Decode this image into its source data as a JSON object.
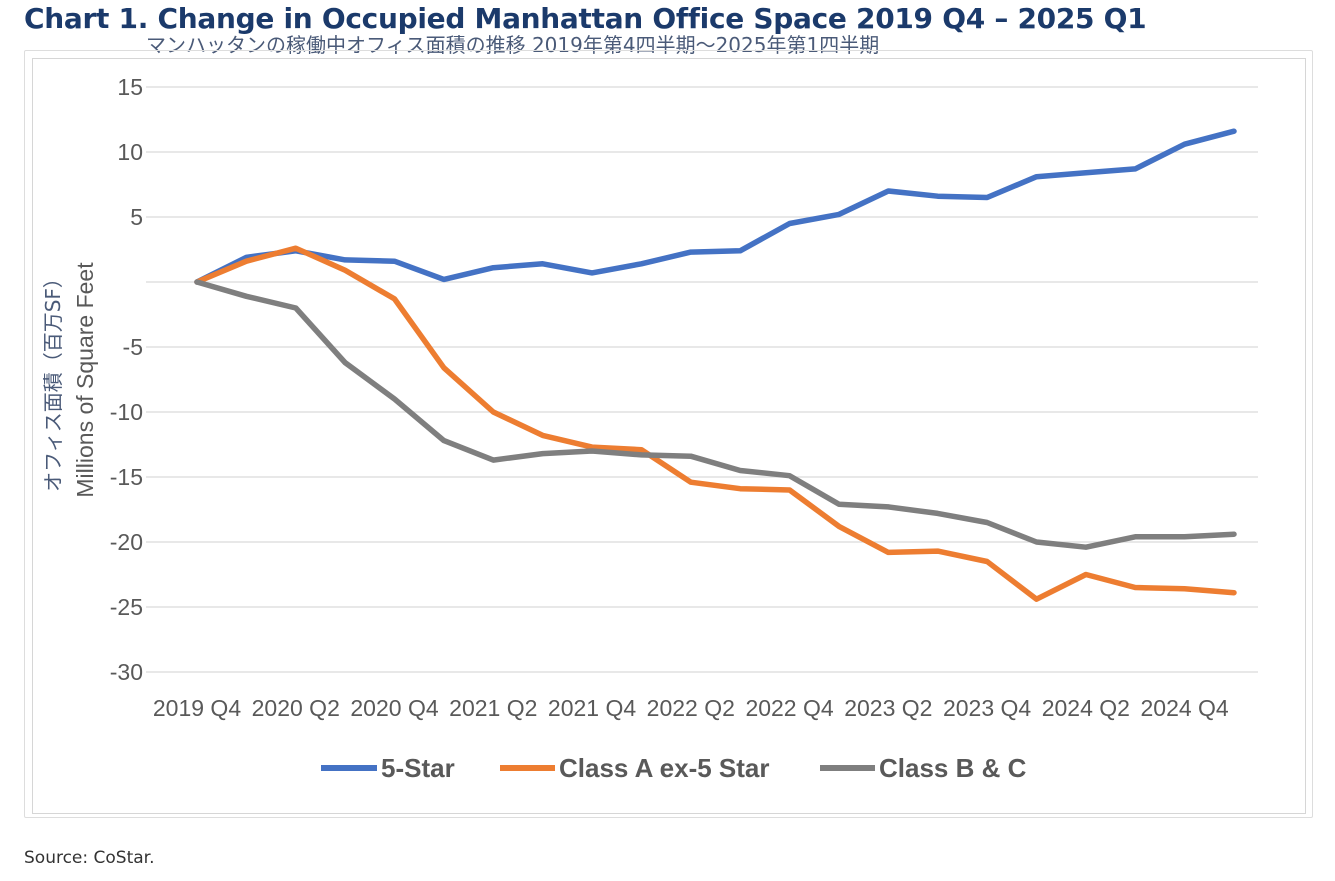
{
  "title": "Chart 1. Change in Occupied Manhattan Office Space 2019 Q4 – 2025 Q1",
  "subtitle": "マンハッタンの稼働中オフィス面積の推移 2019年第4四半期〜2025年第1四半期",
  "source": "Source: CoStar.",
  "chart_data": {
    "type": "line",
    "ylabel_ja": "オフィス面積（百万SF）",
    "ylabel": "Millions of Square Feet",
    "xlabel": "",
    "ylim": [
      -30,
      15
    ],
    "yticks": [
      15,
      10,
      5,
      -5,
      -10,
      -15,
      -20,
      -25,
      -30
    ],
    "grid": true,
    "legend_position": "bottom",
    "x": [
      "2019 Q4",
      "2020 Q1",
      "2020 Q2",
      "2020 Q3",
      "2020 Q4",
      "2021 Q1",
      "2021 Q2",
      "2021 Q3",
      "2021 Q4",
      "2022 Q1",
      "2022 Q2",
      "2022 Q3",
      "2022 Q4",
      "2023 Q1",
      "2023 Q2",
      "2023 Q3",
      "2023 Q4",
      "2024 Q1",
      "2024 Q2",
      "2024 Q3",
      "2024 Q4",
      "2025 Q1"
    ],
    "xtick_labels": [
      "2019 Q4",
      "2020 Q2",
      "2020 Q4",
      "2021 Q2",
      "2021 Q4",
      "2022 Q2",
      "2022 Q4",
      "2023 Q2",
      "2023 Q4",
      "2024 Q2",
      "2024 Q4"
    ],
    "series": [
      {
        "name": "5-Star",
        "color": "#4472c4",
        "values": [
          0,
          1.9,
          2.4,
          1.7,
          1.6,
          0.2,
          1.1,
          1.4,
          0.7,
          1.4,
          2.3,
          2.4,
          4.5,
          5.2,
          7.0,
          6.6,
          6.5,
          8.1,
          8.4,
          8.7,
          10.6,
          11.6
        ]
      },
      {
        "name": "Class A ex-5 Star",
        "color": "#ed7d31",
        "values": [
          0,
          1.6,
          2.6,
          0.9,
          -1.3,
          -6.6,
          -10.0,
          -11.8,
          -12.7,
          -12.9,
          -15.4,
          -15.9,
          -16.0,
          -18.8,
          -20.8,
          -20.7,
          -21.5,
          -24.4,
          -22.5,
          -23.5,
          -23.6,
          -23.9
        ]
      },
      {
        "name": "Class B & C",
        "color": "#7f7f7f",
        "values": [
          0,
          -1.1,
          -2.0,
          -6.2,
          -9.0,
          -12.2,
          -13.7,
          -13.2,
          -13.0,
          -13.3,
          -13.4,
          -14.5,
          -14.9,
          -17.1,
          -17.3,
          -17.8,
          -18.5,
          -20.0,
          -20.4,
          -19.6,
          -19.6,
          -19.4
        ]
      }
    ]
  }
}
